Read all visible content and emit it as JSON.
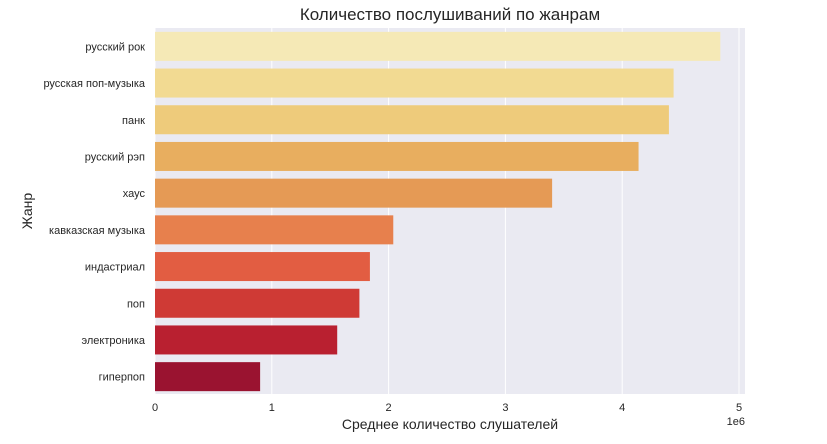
{
  "chart_data": {
    "type": "bar",
    "orientation": "horizontal",
    "title": "Количество послушиваний по жанрам",
    "xlabel": "Среднее количество слушателей",
    "ylabel": "Жанр",
    "x_scale_label": "1e6",
    "xlim": [
      0,
      5.05
    ],
    "xticks": [
      0,
      1,
      2,
      3,
      4,
      5
    ],
    "grid": true,
    "categories": [
      "русский рок",
      "русская поп-музыка",
      "панк",
      "русский рэп",
      "хаус",
      "кавказская музыка",
      "индастриал",
      "поп",
      "электроника",
      "гиперпоп"
    ],
    "values": [
      4.84,
      4.44,
      4.4,
      4.14,
      3.4,
      2.04,
      1.84,
      1.75,
      1.56,
      0.9
    ],
    "value_multiplier": 1000000,
    "colors": [
      "#f5e9b6",
      "#f2da92",
      "#eecb7b",
      "#e8ae5f",
      "#e59a55",
      "#e7804d",
      "#e25d42",
      "#cf3a35",
      "#b92030",
      "#9a1330"
    ],
    "background": "#eaeaf2"
  }
}
